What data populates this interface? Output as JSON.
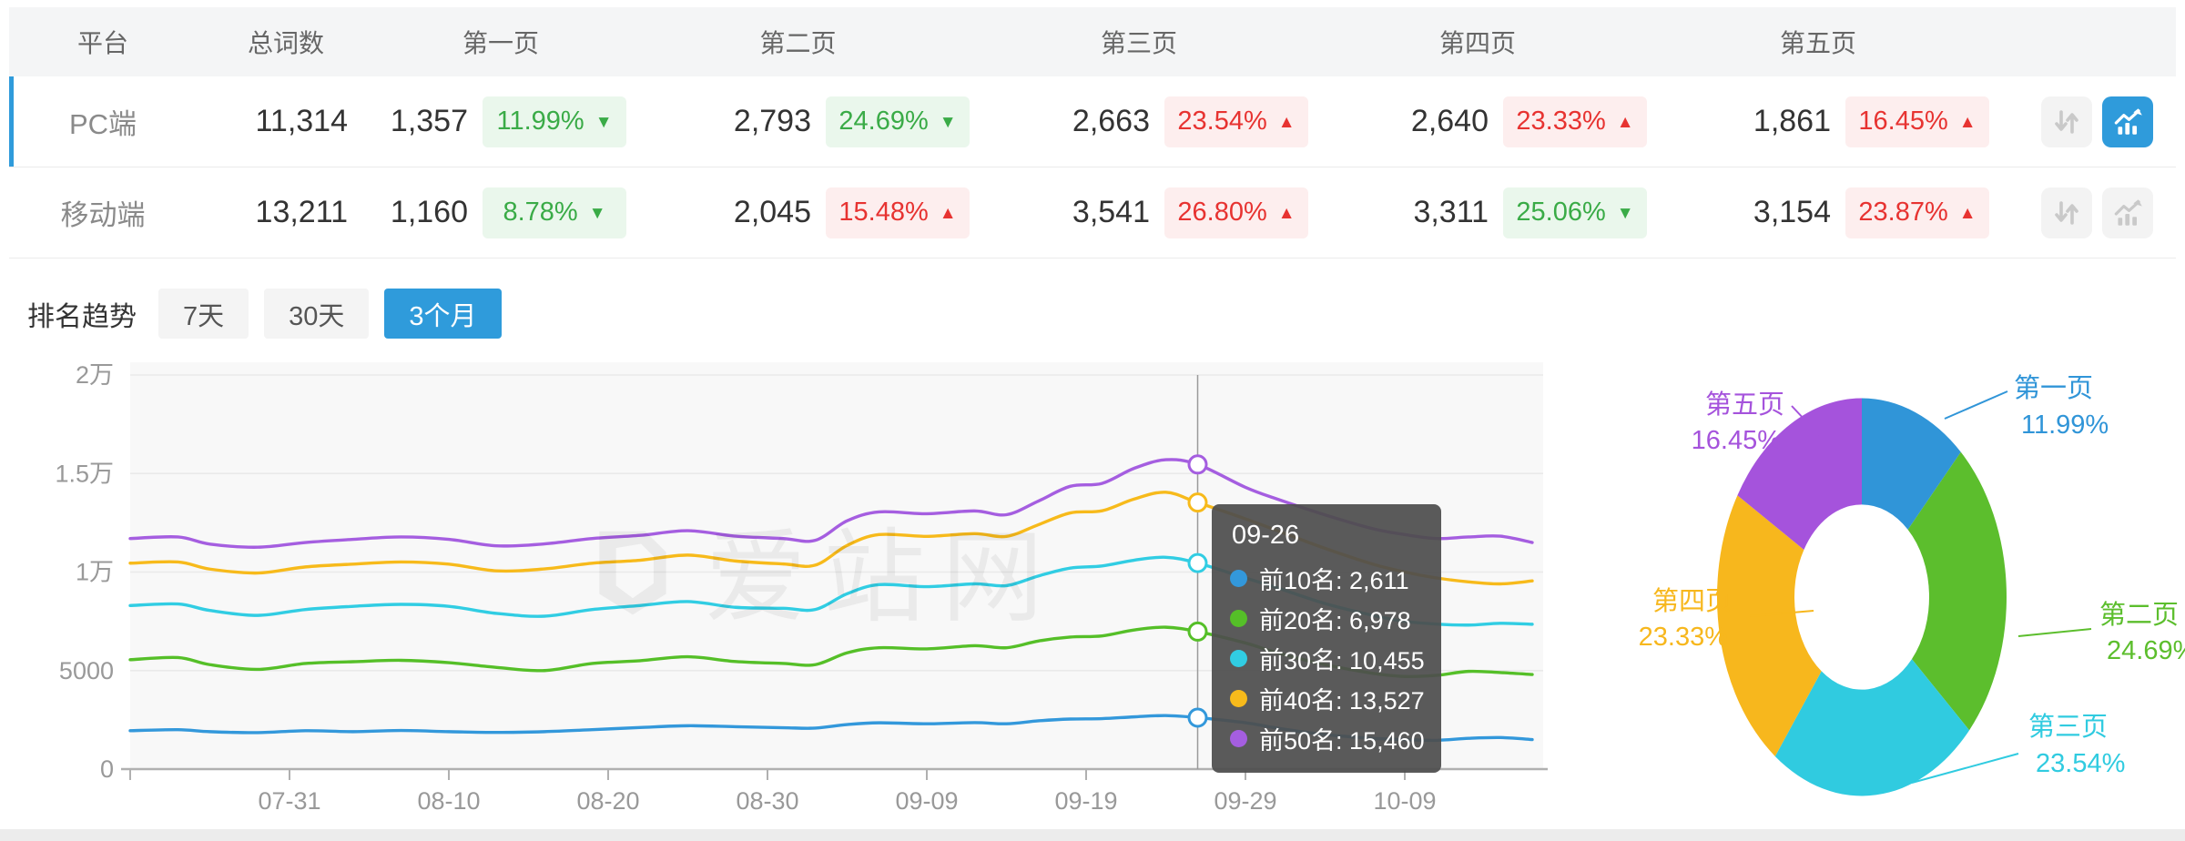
{
  "accent": {
    "blue": "#2f9bdb",
    "badge_up_text": "#e73331",
    "badge_up_bg": "#fdeeee",
    "badge_down_text": "#3aab47",
    "badge_down_bg": "#eaf7ec"
  },
  "table": {
    "columns": [
      "平台",
      "总词数",
      "第一页",
      "第二页",
      "第三页",
      "第四页",
      "第五页"
    ],
    "rows": [
      {
        "platform": "PC端",
        "total": "11,314",
        "selected": true,
        "pages": [
          {
            "count": "1,357",
            "change": "11.99%",
            "arrow": "down"
          },
          {
            "count": "2,793",
            "change": "24.69%",
            "arrow": "down"
          },
          {
            "count": "2,663",
            "change": "23.54%",
            "arrow": "up"
          },
          {
            "count": "2,640",
            "change": "23.33%",
            "arrow": "up"
          },
          {
            "count": "1,861",
            "change": "16.45%",
            "arrow": "up"
          }
        ],
        "sort_button_active": false,
        "trend_button_active": true
      },
      {
        "platform": "移动端",
        "total": "13,211",
        "selected": false,
        "pages": [
          {
            "count": "1,160",
            "change": "8.78%",
            "arrow": "down"
          },
          {
            "count": "2,045",
            "change": "15.48%",
            "arrow": "up"
          },
          {
            "count": "3,541",
            "change": "26.80%",
            "arrow": "up"
          },
          {
            "count": "3,311",
            "change": "25.06%",
            "arrow": "down"
          },
          {
            "count": "3,154",
            "change": "23.87%",
            "arrow": "up"
          }
        ],
        "sort_button_active": false,
        "trend_button_active": false
      }
    ]
  },
  "trend_section": {
    "title": "排名趋势",
    "tabs": [
      {
        "label": "7天",
        "active": false
      },
      {
        "label": "30天",
        "active": false
      },
      {
        "label": "3个月",
        "active": true
      }
    ],
    "watermark_text": "爱站网"
  },
  "chart_data": [
    {
      "type": "line",
      "title": "排名趋势(3个月)",
      "x_range_days": [
        0,
        88
      ],
      "x_tick_labels": [
        "07-31",
        "08-10",
        "08-20",
        "08-30",
        "09-09",
        "09-19",
        "09-29",
        "10-09"
      ],
      "x_tick_days": [
        10,
        20,
        30,
        40,
        50,
        60,
        70,
        80
      ],
      "ylim": [
        0,
        20000
      ],
      "y_ticks": [
        {
          "label": "0",
          "value": 0
        },
        {
          "label": "5000",
          "value": 5000
        },
        {
          "label": "1万",
          "value": 10000
        },
        {
          "label": "1.5万",
          "value": 15000
        },
        {
          "label": "2万",
          "value": 20000
        }
      ],
      "grid": true,
      "crosshair_day": 67,
      "series": [
        {
          "name": "前10名",
          "color": "#3398db",
          "points": [
            [
              0,
              1950
            ],
            [
              3,
              2000
            ],
            [
              5,
              1900
            ],
            [
              8,
              1850
            ],
            [
              11,
              1950
            ],
            [
              14,
              1900
            ],
            [
              17,
              1960
            ],
            [
              20,
              1900
            ],
            [
              23,
              1860
            ],
            [
              26,
              1900
            ],
            [
              29,
              2000
            ],
            [
              32,
              2110
            ],
            [
              35,
              2200
            ],
            [
              38,
              2150
            ],
            [
              41,
              2100
            ],
            [
              43,
              2080
            ],
            [
              45,
              2260
            ],
            [
              47,
              2350
            ],
            [
              50,
              2300
            ],
            [
              53,
              2360
            ],
            [
              55,
              2300
            ],
            [
              57,
              2450
            ],
            [
              59,
              2540
            ],
            [
              61,
              2560
            ],
            [
              63,
              2650
            ],
            [
              65,
              2715
            ],
            [
              67,
              2611
            ],
            [
              70,
              2350
            ],
            [
              72,
              2080
            ],
            [
              75,
              1750
            ],
            [
              78,
              1560
            ],
            [
              80,
              1500
            ],
            [
              82,
              1460
            ],
            [
              84,
              1560
            ],
            [
              86,
              1600
            ],
            [
              88,
              1500
            ]
          ]
        },
        {
          "name": "前20名",
          "color": "#55bf28",
          "points": [
            [
              0,
              5550
            ],
            [
              3,
              5660
            ],
            [
              5,
              5300
            ],
            [
              8,
              5060
            ],
            [
              11,
              5360
            ],
            [
              14,
              5450
            ],
            [
              17,
              5520
            ],
            [
              20,
              5400
            ],
            [
              23,
              5160
            ],
            [
              26,
              5000
            ],
            [
              29,
              5360
            ],
            [
              32,
              5500
            ],
            [
              35,
              5700
            ],
            [
              38,
              5460
            ],
            [
              41,
              5360
            ],
            [
              43,
              5300
            ],
            [
              45,
              5900
            ],
            [
              47,
              6160
            ],
            [
              50,
              6100
            ],
            [
              53,
              6260
            ],
            [
              55,
              6160
            ],
            [
              57,
              6500
            ],
            [
              59,
              6700
            ],
            [
              61,
              6760
            ],
            [
              63,
              7060
            ],
            [
              65,
              7200
            ],
            [
              67,
              6978
            ],
            [
              70,
              6400
            ],
            [
              72,
              5900
            ],
            [
              75,
              5300
            ],
            [
              78,
              4860
            ],
            [
              80,
              4700
            ],
            [
              82,
              4760
            ],
            [
              84,
              4960
            ],
            [
              86,
              4900
            ],
            [
              88,
              4800
            ]
          ]
        },
        {
          "name": "前30名",
          "color": "#31cde3",
          "points": [
            [
              0,
              8300
            ],
            [
              3,
              8380
            ],
            [
              5,
              8050
            ],
            [
              8,
              7800
            ],
            [
              11,
              8100
            ],
            [
              14,
              8260
            ],
            [
              17,
              8360
            ],
            [
              20,
              8260
            ],
            [
              23,
              7900
            ],
            [
              26,
              7760
            ],
            [
              29,
              8100
            ],
            [
              32,
              8300
            ],
            [
              35,
              8500
            ],
            [
              38,
              8210
            ],
            [
              41,
              8160
            ],
            [
              43,
              8100
            ],
            [
              45,
              8900
            ],
            [
              47,
              9360
            ],
            [
              50,
              9260
            ],
            [
              53,
              9400
            ],
            [
              55,
              9310
            ],
            [
              57,
              9800
            ],
            [
              59,
              10200
            ],
            [
              61,
              10310
            ],
            [
              63,
              10600
            ],
            [
              65,
              10750
            ],
            [
              67,
              10455
            ],
            [
              70,
              9700
            ],
            [
              72,
              9200
            ],
            [
              75,
              8400
            ],
            [
              78,
              7800
            ],
            [
              80,
              7500
            ],
            [
              82,
              7360
            ],
            [
              84,
              7310
            ],
            [
              86,
              7400
            ],
            [
              88,
              7350
            ]
          ]
        },
        {
          "name": "前40名",
          "color": "#f7ba1b",
          "points": [
            [
              0,
              10450
            ],
            [
              3,
              10510
            ],
            [
              5,
              10150
            ],
            [
              8,
              9950
            ],
            [
              11,
              10260
            ],
            [
              14,
              10400
            ],
            [
              17,
              10510
            ],
            [
              20,
              10400
            ],
            [
              23,
              10060
            ],
            [
              26,
              10160
            ],
            [
              29,
              10450
            ],
            [
              32,
              10600
            ],
            [
              35,
              10860
            ],
            [
              38,
              10560
            ],
            [
              41,
              10410
            ],
            [
              43,
              10350
            ],
            [
              45,
              11350
            ],
            [
              47,
              11900
            ],
            [
              50,
              11810
            ],
            [
              53,
              11950
            ],
            [
              55,
              11810
            ],
            [
              57,
              12400
            ],
            [
              59,
              13000
            ],
            [
              61,
              13110
            ],
            [
              63,
              13700
            ],
            [
              65,
              14050
            ],
            [
              67,
              13527
            ],
            [
              70,
              12700
            ],
            [
              72,
              12100
            ],
            [
              75,
              11200
            ],
            [
              78,
              10400
            ],
            [
              80,
              10000
            ],
            [
              82,
              9700
            ],
            [
              84,
              9500
            ],
            [
              86,
              9400
            ],
            [
              88,
              9550
            ]
          ]
        },
        {
          "name": "前50名",
          "color": "#a55ee0",
          "points": [
            [
              0,
              11700
            ],
            [
              3,
              11780
            ],
            [
              5,
              11420
            ],
            [
              8,
              11260
            ],
            [
              11,
              11500
            ],
            [
              14,
              11660
            ],
            [
              17,
              11780
            ],
            [
              20,
              11660
            ],
            [
              23,
              11330
            ],
            [
              26,
              11430
            ],
            [
              29,
              11700
            ],
            [
              32,
              11860
            ],
            [
              35,
              12100
            ],
            [
              38,
              11820
            ],
            [
              41,
              11700
            ],
            [
              43,
              11610
            ],
            [
              45,
              12600
            ],
            [
              47,
              13050
            ],
            [
              50,
              12960
            ],
            [
              53,
              13100
            ],
            [
              55,
              12910
            ],
            [
              57,
              13600
            ],
            [
              59,
              14350
            ],
            [
              61,
              14500
            ],
            [
              63,
              15260
            ],
            [
              65,
              15700
            ],
            [
              67,
              15460
            ],
            [
              70,
              14300
            ],
            [
              72,
              13700
            ],
            [
              75,
              12900
            ],
            [
              78,
              12200
            ],
            [
              80,
              11900
            ],
            [
              82,
              11700
            ],
            [
              84,
              11780
            ],
            [
              86,
              11820
            ],
            [
              88,
              11500
            ]
          ]
        }
      ],
      "tooltip": {
        "title": "09-26",
        "rows": [
          {
            "label": "前10名",
            "value": "2,611",
            "num": 2611
          },
          {
            "label": "前20名",
            "value": "6,978",
            "num": 6978
          },
          {
            "label": "前30名",
            "value": "10,455",
            "num": 10455
          },
          {
            "label": "前40名",
            "value": "13,527",
            "num": 13527
          },
          {
            "label": "前50名",
            "value": "15,460",
            "num": 15460
          }
        ]
      }
    },
    {
      "type": "pie",
      "donut": true,
      "slices": [
        {
          "label": "第一页",
          "percent": 11.99,
          "percent_label": "11.99%",
          "color": "#3095d8"
        },
        {
          "label": "第二页",
          "percent": 24.69,
          "percent_label": "24.69%",
          "color": "#5cbe2d"
        },
        {
          "label": "第三页",
          "percent": 23.54,
          "percent_label": "23.54%",
          "color": "#30cbe0"
        },
        {
          "label": "第四页",
          "percent": 23.33,
          "percent_label": "23.33%",
          "color": "#f7b71d"
        },
        {
          "label": "第五页",
          "percent": 16.45,
          "percent_label": "16.45%",
          "color": "#a553dc"
        }
      ]
    }
  ]
}
